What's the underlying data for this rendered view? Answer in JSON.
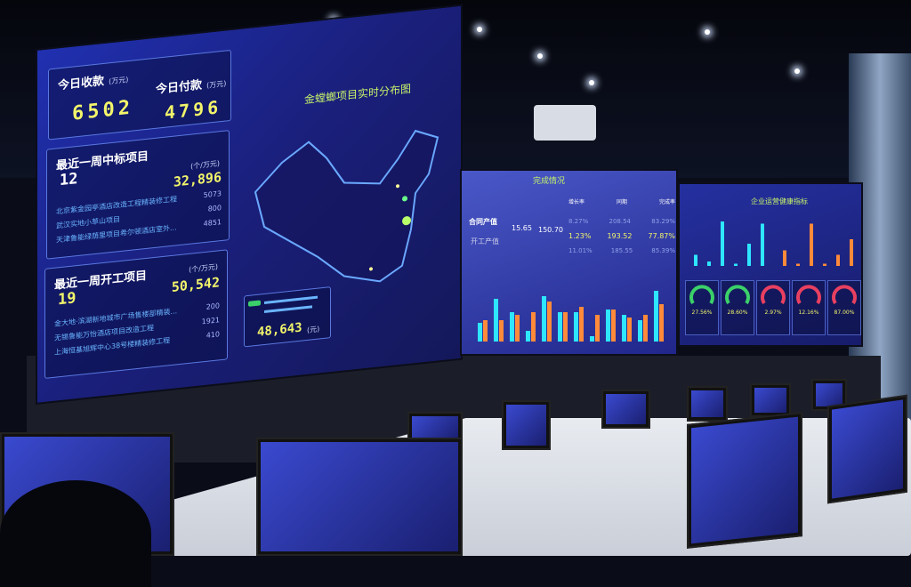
{
  "left_panel": {
    "receipt_label": "今日收款",
    "receipt_unit": "(万元)",
    "receipt_value": "6502",
    "payment_label": "今日付款",
    "payment_unit": "(万元)",
    "payment_value": "4796",
    "won": {
      "title": "最近一周中标项目",
      "count": "12",
      "unit": "(个/万元)",
      "total": "32,896",
      "items": [
        {
          "name": "北京紫金园亭酒店改造工程精装修工程",
          "value": "5073"
        },
        {
          "name": "武汉实地小草山项目",
          "value": "800"
        },
        {
          "name": "天津鲁能绿荫里项目希尔顿酒店室外...",
          "value": "4851"
        }
      ]
    },
    "started": {
      "title": "最近一周开工项目",
      "count": "19",
      "unit": "(个/万元)",
      "total": "50,542",
      "items": [
        {
          "name": "金大地·滨湖新地城市广场售楼部精装...",
          "value": "200"
        },
        {
          "name": "无锡鲁能万怡酒店项目改造工程",
          "value": "1921"
        },
        {
          "name": "上海恒基旭辉中心38号楼精装修工程",
          "value": "410"
        }
      ]
    }
  },
  "map": {
    "title": "金螳螂项目实时分布图",
    "popup_value": "48,643",
    "popup_unit": "(元)"
  },
  "middle_panel": {
    "title": "完成情况",
    "rows": [
      {
        "label": "合同产值",
        "a": "15.65",
        "b": "150.70"
      },
      {
        "label": "开工产值",
        "a": "",
        "b": ""
      }
    ],
    "headers": [
      "增长率",
      "同期",
      "完成率"
    ],
    "table": [
      [
        "8.27%",
        "208.54",
        "83.29%"
      ],
      [
        "1.23%",
        "193.52",
        "77.87%"
      ],
      [
        "11.01%",
        "185.55",
        "85.39%"
      ]
    ],
    "bars_cyan": [
      0.35,
      0.8,
      0.55,
      0.2,
      0.85,
      0.55,
      0.55,
      0.1,
      0.6,
      0.5,
      0.4,
      0.95
    ],
    "bars_orange": [
      0.4,
      0.4,
      0.5,
      0.55,
      0.75,
      0.55,
      0.65,
      0.5,
      0.6,
      0.45,
      0.5,
      0.7
    ]
  },
  "right_panel": {
    "title": "企业运营健康指标",
    "bars_cyan": [
      0.25,
      0.1,
      1.0,
      0.05,
      0.5,
      0.95
    ],
    "bars_orange": [
      0.35,
      0.05,
      0.95,
      0.05,
      0.25,
      0.6
    ],
    "gauges": [
      "27.56%",
      "28.60%",
      "2.97%",
      "12.16%",
      "87.00%"
    ]
  },
  "colors": {
    "cyan": "#2ee6ff",
    "orange": "#ff8a3a",
    "yellow": "#f2f56a"
  }
}
